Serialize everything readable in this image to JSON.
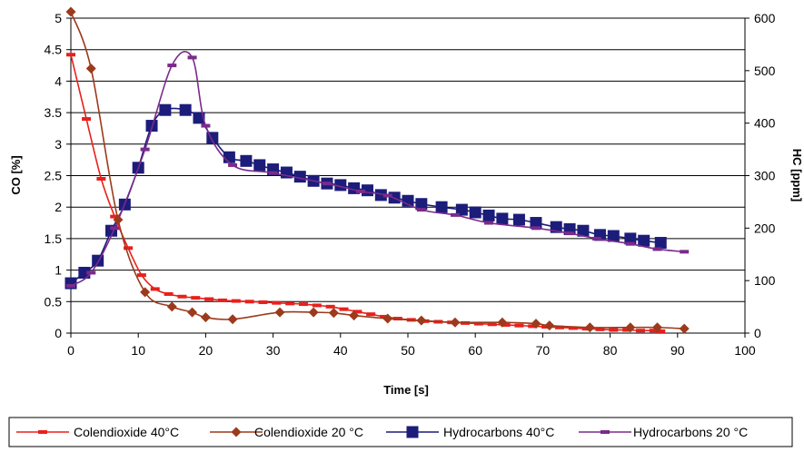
{
  "chart_data": {
    "type": "line",
    "title": "",
    "xlabel": "Time [s]",
    "ylabel_left": "CO [%]",
    "ylabel_right": "HC [ppm]",
    "xlim": [
      0,
      100
    ],
    "x_ticks": [
      0,
      10,
      20,
      30,
      40,
      50,
      60,
      70,
      80,
      90,
      100
    ],
    "ylim_left": [
      0,
      5
    ],
    "y_left_ticks": [
      0,
      0.5,
      1,
      1.5,
      2,
      2.5,
      3,
      3.5,
      4,
      4.5,
      5
    ],
    "ylim_right": [
      0,
      600
    ],
    "y_right_ticks": [
      0,
      100,
      200,
      300,
      400,
      500,
      600
    ],
    "grid": "horizontal",
    "legend_position": "bottom",
    "series": [
      {
        "name": "Colendioxide 40°C",
        "axis": "left",
        "color": "#e8201c",
        "marker": "dash",
        "x": [
          0,
          2.3,
          4.5,
          6.5,
          8.5,
          10.5,
          12.5,
          14.5,
          16.5,
          18.5,
          20.5,
          22.5,
          24.5,
          26.5,
          28.5,
          30.5,
          32.5,
          34.5,
          36.5,
          38.5,
          40.5,
          42.5,
          44.5,
          46.5,
          48.5,
          50.5,
          52.5,
          54.5,
          56.5,
          58.5,
          60.5,
          62.5,
          64.5,
          66.5,
          68.5,
          70.5,
          72.5,
          74.5,
          76.5,
          78.5,
          80.5,
          82.5,
          84.5,
          86.5,
          87.5
        ],
        "values": [
          4.42,
          3.4,
          2.45,
          1.85,
          1.35,
          0.92,
          0.7,
          0.62,
          0.58,
          0.56,
          0.54,
          0.52,
          0.51,
          0.5,
          0.49,
          0.48,
          0.47,
          0.46,
          0.44,
          0.42,
          0.38,
          0.34,
          0.3,
          0.26,
          0.23,
          0.21,
          0.19,
          0.18,
          0.17,
          0.16,
          0.15,
          0.14,
          0.13,
          0.12,
          0.11,
          0.1,
          0.09,
          0.08,
          0.07,
          0.06,
          0.05,
          0.05,
          0.04,
          0.04,
          0.03
        ]
      },
      {
        "name": "Colendioxide 20 °C",
        "axis": "left",
        "color": "#9c3a1c",
        "marker": "diamond",
        "x": [
          0,
          3,
          7,
          11,
          15,
          18,
          20,
          24,
          31,
          36,
          39,
          42,
          47,
          52,
          57,
          64,
          69,
          71,
          77,
          83,
          87,
          91
        ],
        "values": [
          5.1,
          4.2,
          1.8,
          0.65,
          0.42,
          0.33,
          0.25,
          0.22,
          0.33,
          0.33,
          0.32,
          0.28,
          0.23,
          0.2,
          0.17,
          0.17,
          0.15,
          0.12,
          0.09,
          0.09,
          0.09,
          0.07
        ]
      },
      {
        "name": "Hydrocarbons 40°C",
        "axis": "right",
        "color": "#1c1c7a",
        "marker": "square",
        "x": [
          0,
          2,
          4,
          6,
          8,
          10,
          12,
          14,
          17,
          19,
          21,
          23.5,
          26,
          28,
          30,
          32,
          34,
          36,
          38,
          40,
          42,
          44,
          46,
          48,
          50,
          52,
          55,
          58,
          60,
          62,
          64,
          66.5,
          69,
          72,
          74,
          76,
          78.5,
          80.5,
          83,
          85,
          87.5
        ],
        "values": [
          95,
          115,
          138,
          195,
          245,
          315,
          395,
          425,
          425,
          410,
          372,
          335,
          328,
          320,
          312,
          306,
          298,
          290,
          285,
          282,
          276,
          272,
          263,
          258,
          252,
          246,
          240,
          235,
          230,
          224,
          218,
          216,
          210,
          202,
          198,
          195,
          187,
          185,
          180,
          176,
          172
        ]
      },
      {
        "name": "Hydrocarbons 20 °C",
        "axis": "right",
        "color": "#7b2a8c",
        "marker": "dash",
        "x": [
          0,
          3,
          6.5,
          11,
          15,
          18,
          20,
          24,
          30,
          38,
          43,
          47,
          52,
          57,
          62,
          69,
          74,
          78,
          83,
          87,
          91
        ],
        "values": [
          90,
          115,
          200,
          350,
          510,
          525,
          395,
          320,
          305,
          285,
          270,
          262,
          235,
          225,
          210,
          200,
          190,
          180,
          170,
          160,
          155
        ]
      }
    ]
  }
}
